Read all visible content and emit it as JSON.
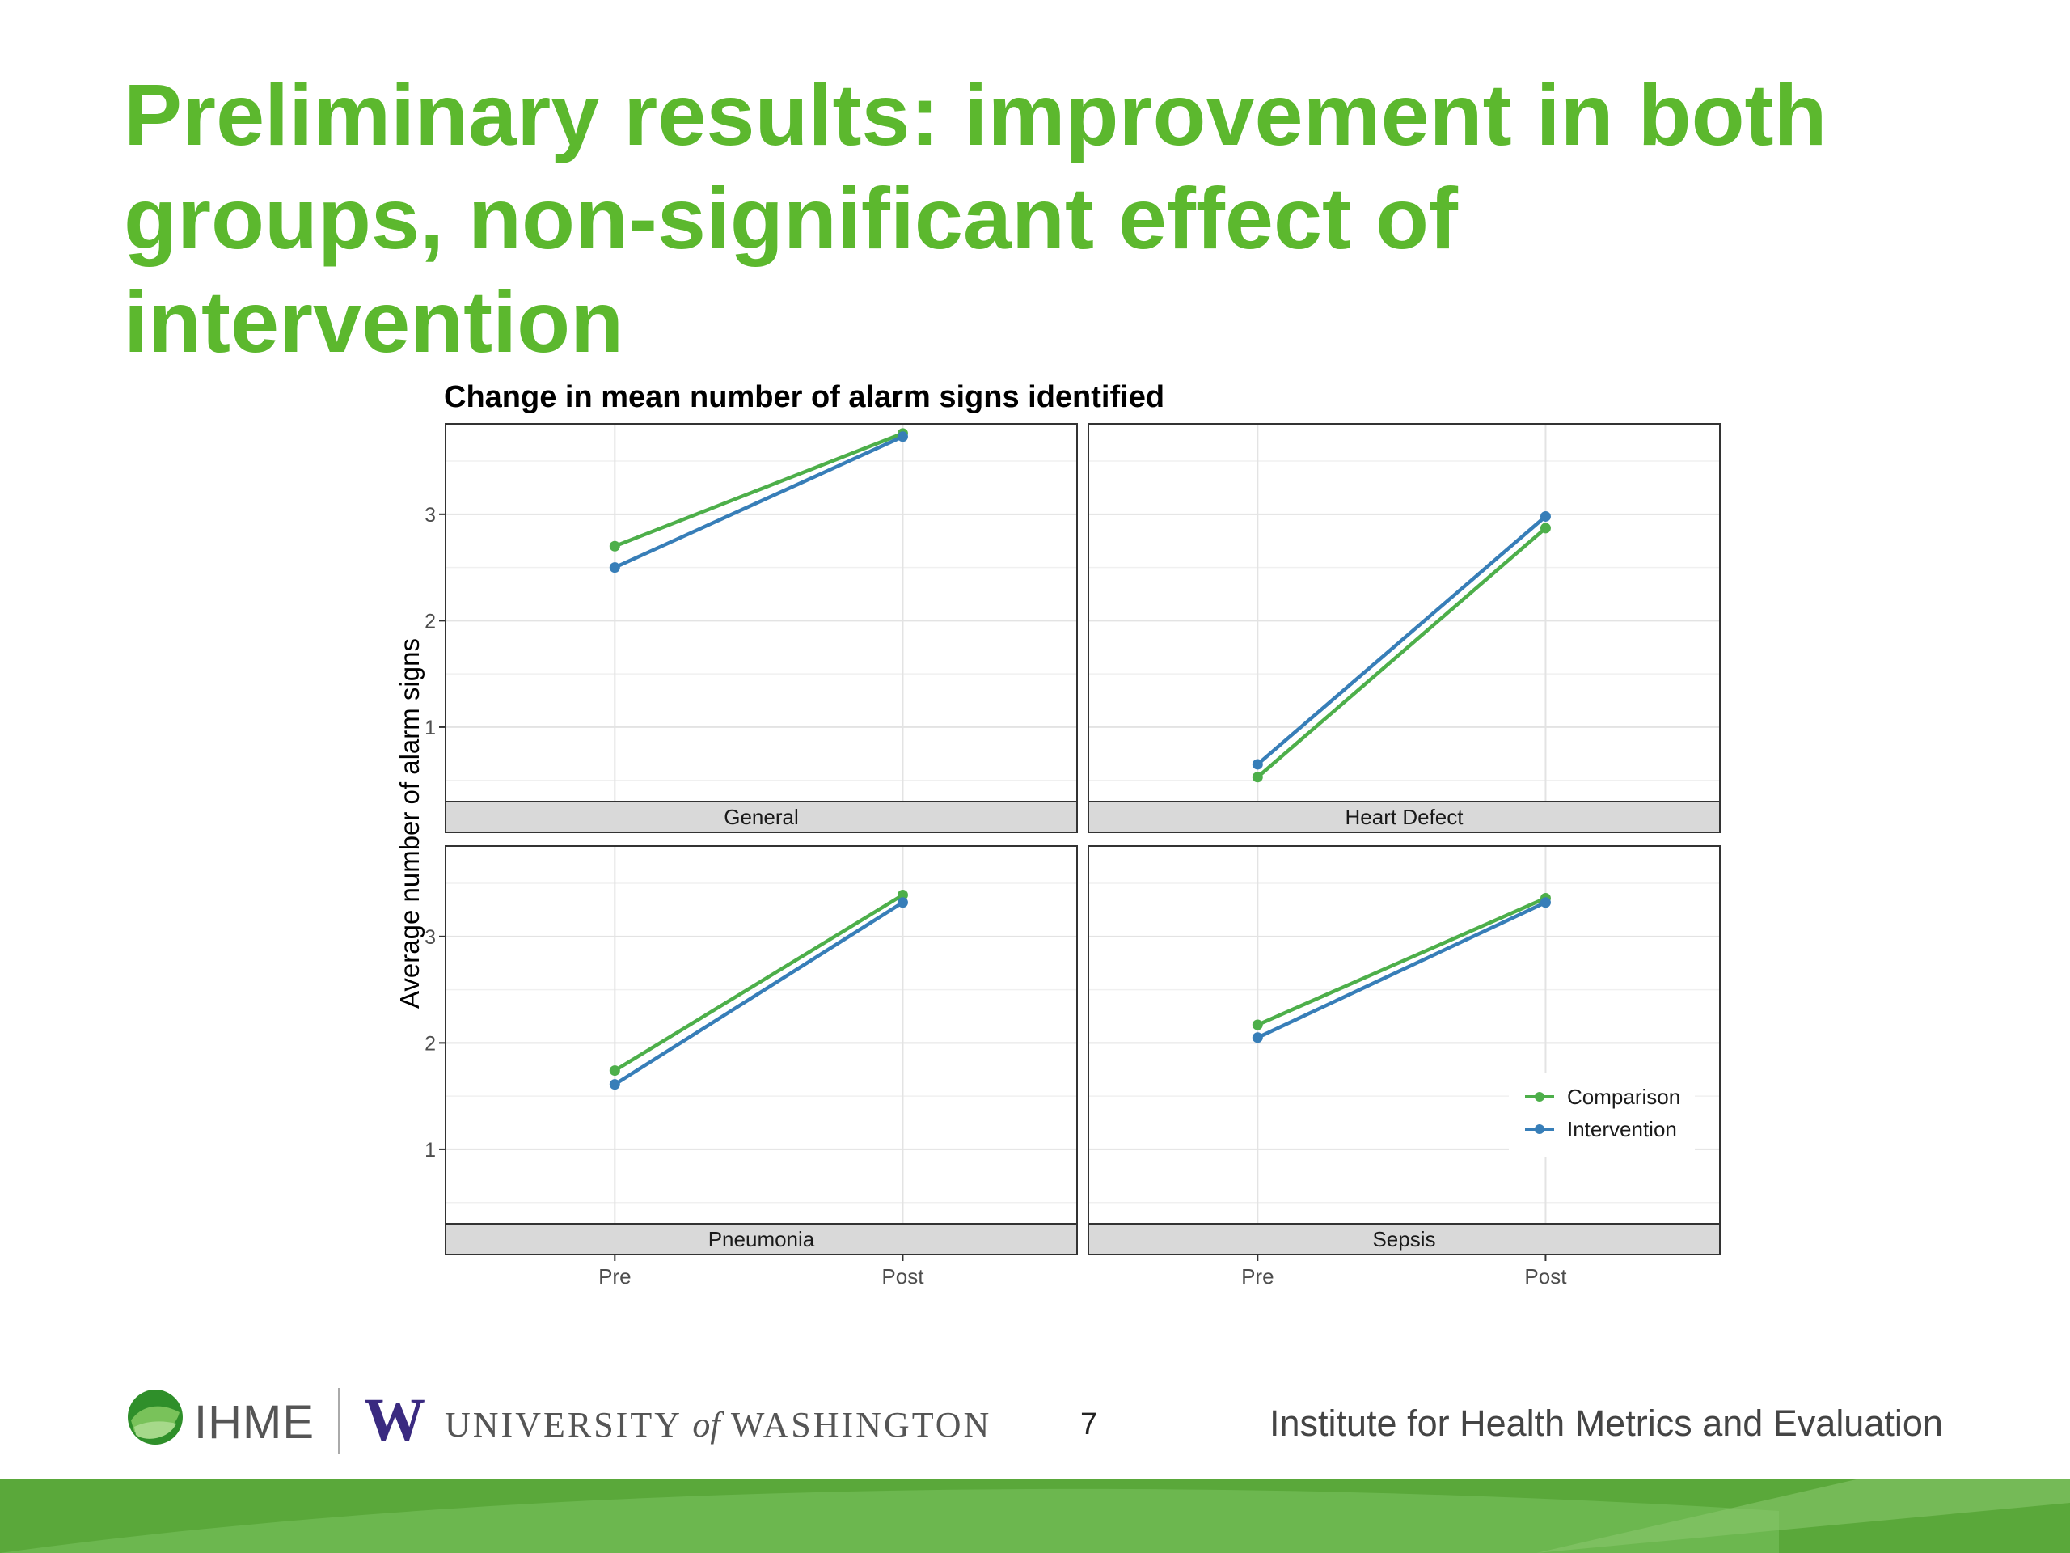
{
  "slide": {
    "title": "Preliminary results: improvement in both groups, non-significant effect of intervention",
    "page_number": "7"
  },
  "footer": {
    "ihme_label": "IHME",
    "uw_label_1": "UNIVERSITY",
    "uw_label_of": "of",
    "uw_label_2": "WASHINGTON",
    "uw_mark": "W",
    "institute_label": "Institute for Health Metrics and Evaluation"
  },
  "colors": {
    "title": "#5cb82e",
    "comparison": "#4daf4a",
    "intervention": "#377eb8",
    "footer_bar": "#5aa83a"
  },
  "chart_data": {
    "type": "line",
    "title": "Change in mean number of alarm signs identified",
    "ylabel": "Average number of alarm signs",
    "xlabel": "",
    "x": [
      "Pre",
      "Post"
    ],
    "ylim": [
      0.3,
      3.85
    ],
    "yticks": [
      1,
      2,
      3
    ],
    "grid": true,
    "legend_position": "bottom-right",
    "legend": [
      "Comparison",
      "Intervention"
    ],
    "panels": [
      {
        "name": "General",
        "series": [
          {
            "name": "Comparison",
            "values": [
              2.7,
              3.76
            ]
          },
          {
            "name": "Intervention",
            "values": [
              2.5,
              3.73
            ]
          }
        ]
      },
      {
        "name": "Heart Defect",
        "series": [
          {
            "name": "Comparison",
            "values": [
              0.53,
              2.87
            ]
          },
          {
            "name": "Intervention",
            "values": [
              0.65,
              2.98
            ]
          }
        ]
      },
      {
        "name": "Pneumonia",
        "series": [
          {
            "name": "Comparison",
            "values": [
              1.74,
              3.39
            ]
          },
          {
            "name": "Intervention",
            "values": [
              1.61,
              3.32
            ]
          }
        ]
      },
      {
        "name": "Sepsis",
        "series": [
          {
            "name": "Comparison",
            "values": [
              2.17,
              3.36
            ]
          },
          {
            "name": "Intervention",
            "values": [
              2.05,
              3.32
            ]
          }
        ]
      }
    ]
  }
}
